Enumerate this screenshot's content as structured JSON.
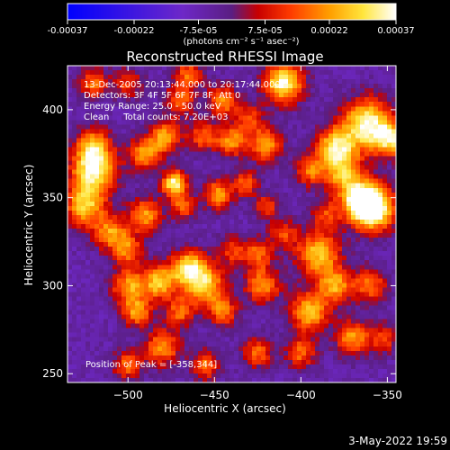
{
  "colorbar": {
    "tick_labels": [
      "-0.00037",
      "-0.00022",
      "-7.5e-05",
      "7.5e-05",
      "0.00022",
      "0.00037"
    ],
    "tick_values": [
      -0.00037,
      -0.00022,
      -7.5e-05,
      7.5e-05,
      0.00022,
      0.00037
    ],
    "range": [
      -0.00037,
      0.00037
    ],
    "unit_label": "(photons cm⁻² s⁻¹ asec⁻²)"
  },
  "footer": {
    "date": "3-May-2022 19:59"
  },
  "chart_data": {
    "type": "heatmap",
    "title": "Reconstructed RHESSI Image",
    "xlabel": "Heliocentric X (arcsec)",
    "ylabel": "Heliocentric Y (arcsec)",
    "xlim": [
      -535,
      -345
    ],
    "ylim": [
      245,
      425
    ],
    "x_ticks": [
      -500,
      -450,
      -400,
      -350
    ],
    "x_tick_labels": [
      "−500",
      "−450",
      "−400",
      "−350"
    ],
    "y_ticks": [
      250,
      300,
      350,
      400
    ],
    "y_tick_labels": [
      "250",
      "300",
      "350",
      "400"
    ],
    "info_lines": [
      "13-Dec-2005 20:13:44.000 to 20:17:44.000",
      "Detectors: 3F 4F 5F 6F 7F 8F, Att 0",
      "Energy Range: 25.0 - 50.0 keV",
      "Clean     Total counts: 7.20E+03"
    ],
    "peak_label": "Position of Peak = [-358,344]",
    "peak": [
      -358,
      344
    ],
    "colormap": "blue-violet-red-yellow-white",
    "hotspots": [
      [
        -358,
        344,
        1.0,
        9
      ],
      [
        -365,
        348,
        0.8,
        7
      ],
      [
        -362,
        392,
        0.9,
        10
      ],
      [
        -348,
        383,
        0.7,
        7
      ],
      [
        -380,
        378,
        0.8,
        8
      ],
      [
        -375,
        362,
        0.6,
        8
      ],
      [
        -390,
        318,
        0.7,
        9
      ],
      [
        -380,
        300,
        0.6,
        7
      ],
      [
        -395,
        285,
        0.7,
        8
      ],
      [
        -370,
        270,
        0.6,
        7
      ],
      [
        -400,
        262,
        0.5,
        6
      ],
      [
        -422,
        300,
        0.6,
        7
      ],
      [
        -425,
        318,
        0.5,
        6
      ],
      [
        -455,
        300,
        0.7,
        8
      ],
      [
        -465,
        310,
        0.8,
        7
      ],
      [
        -482,
        302,
        0.7,
        7
      ],
      [
        -500,
        300,
        0.6,
        7
      ],
      [
        -495,
        285,
        0.6,
        6
      ],
      [
        -470,
        285,
        0.5,
        6
      ],
      [
        -445,
        285,
        0.5,
        6
      ],
      [
        -480,
        265,
        0.6,
        7
      ],
      [
        -500,
        255,
        0.5,
        6
      ],
      [
        -455,
        255,
        0.5,
        6
      ],
      [
        -425,
        262,
        0.5,
        6
      ],
      [
        -520,
        365,
        0.9,
        9
      ],
      [
        -525,
        345,
        0.7,
        8
      ],
      [
        -520,
        380,
        0.6,
        7
      ],
      [
        -510,
        330,
        0.6,
        7
      ],
      [
        -490,
        340,
        0.6,
        7
      ],
      [
        -500,
        320,
        0.5,
        6
      ],
      [
        -473,
        358,
        0.9,
        5
      ],
      [
        -468,
        345,
        0.5,
        5
      ],
      [
        -448,
        352,
        0.6,
        6
      ],
      [
        -432,
        358,
        0.5,
        5
      ],
      [
        -420,
        345,
        0.4,
        5
      ],
      [
        -490,
        375,
        0.6,
        7
      ],
      [
        -478,
        385,
        0.6,
        6
      ],
      [
        -457,
        385,
        0.5,
        6
      ],
      [
        -440,
        382,
        0.6,
        6
      ],
      [
        -420,
        380,
        0.6,
        7
      ],
      [
        -395,
        365,
        0.5,
        6
      ],
      [
        -470,
        405,
        0.5,
        6
      ],
      [
        -445,
        405,
        0.6,
        6
      ],
      [
        -410,
        415,
        0.9,
        8
      ],
      [
        -500,
        415,
        0.4,
        6
      ],
      [
        -465,
        420,
        0.5,
        6
      ],
      [
        -385,
        340,
        0.4,
        6
      ],
      [
        -410,
        330,
        0.4,
        6
      ],
      [
        -440,
        320,
        0.4,
        6
      ],
      [
        -360,
        300,
        0.5,
        7
      ],
      [
        -352,
        270,
        0.4,
        6
      ],
      [
        -520,
        415,
        0.5,
        6
      ],
      [
        -430,
        395,
        0.4,
        6
      ]
    ]
  }
}
